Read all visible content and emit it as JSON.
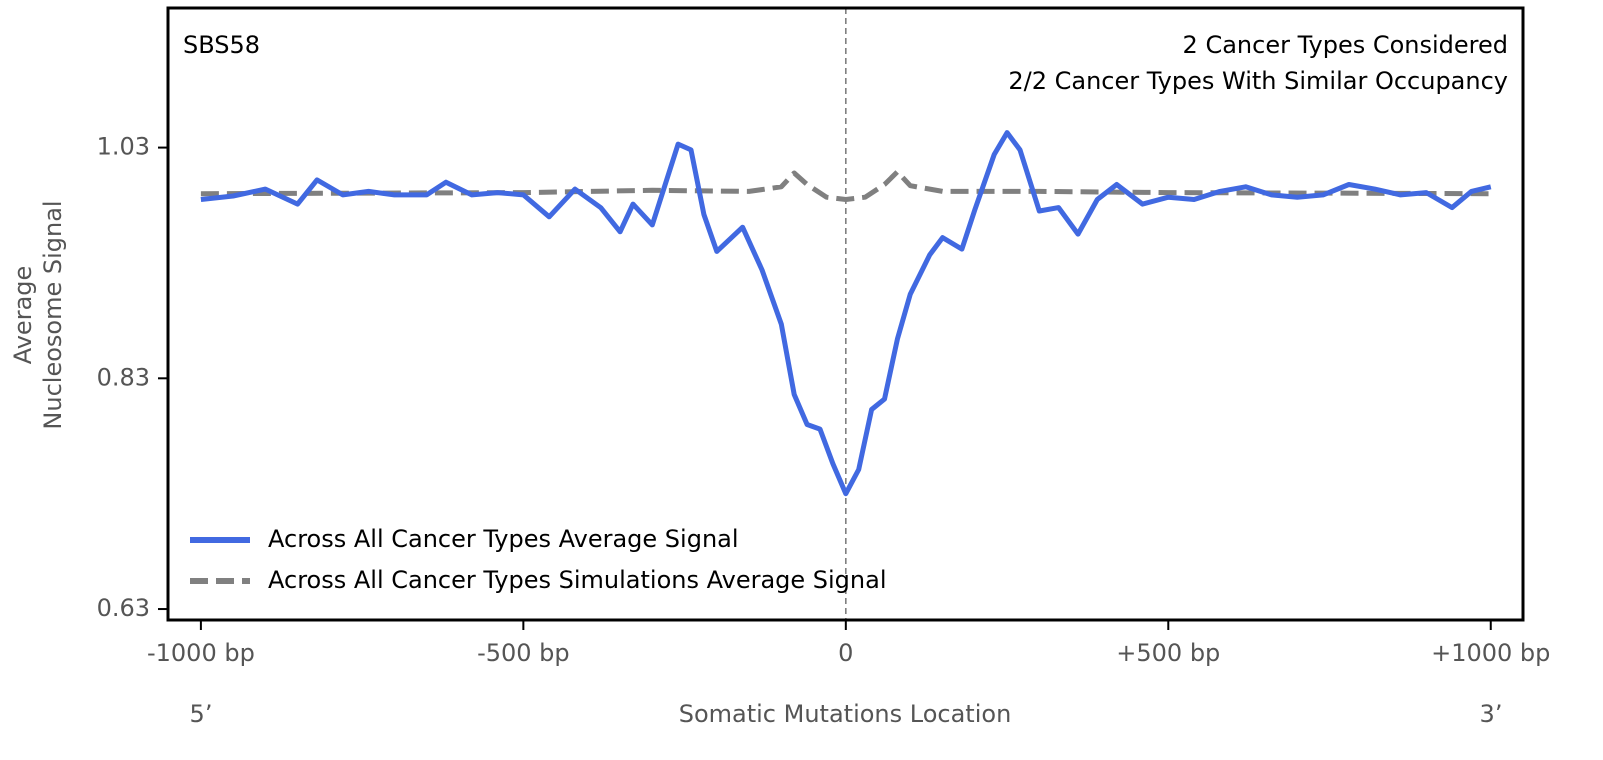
{
  "chart_data": {
    "type": "line",
    "annotations": [
      "SBS58",
      "2 Cancer Types Considered",
      "2/2 Cancer Types With Similar Occupancy"
    ],
    "xlabel": "Somatic Mutations Location",
    "xlabel_ends": [
      "5’",
      "3’"
    ],
    "ylabel": [
      "Average",
      "Nucleosome Signal"
    ],
    "xlim": [
      -1051,
      1050
    ],
    "ylim": [
      0.6205,
      1.151
    ],
    "xticks": [
      {
        "value": -1000,
        "label": "-1000 bp"
      },
      {
        "value": -500,
        "label": "-500 bp"
      },
      0,
      {
        "value": 500,
        "label": "+500 bp"
      },
      {
        "value": 1000,
        "label": "+1000 bp"
      }
    ],
    "yticks": [
      0.63,
      0.83,
      1.03
    ],
    "center_line": true,
    "legend": "lower left",
    "series": [
      {
        "name": "Across All Cancer Types Average Signal",
        "color": "#4169e1",
        "dash": false,
        "x": [
          -1000,
          -950,
          -900,
          -850,
          -820,
          -780,
          -740,
          -700,
          -650,
          -620,
          -580,
          -540,
          -500,
          -460,
          -420,
          -380,
          -350,
          -330,
          -300,
          -260,
          -240,
          -220,
          -200,
          -160,
          -130,
          -100,
          -80,
          -60,
          -40,
          -20,
          0,
          20,
          40,
          60,
          80,
          100,
          130,
          150,
          180,
          200,
          230,
          250,
          270,
          300,
          330,
          360,
          390,
          420,
          460,
          500,
          540,
          580,
          620,
          660,
          700,
          740,
          780,
          820,
          860,
          900,
          940,
          970,
          1000
        ],
        "values": [
          0.985,
          0.988,
          0.994,
          0.981,
          1.002,
          0.989,
          0.992,
          0.989,
          0.989,
          1.0,
          0.989,
          0.991,
          0.989,
          0.97,
          0.994,
          0.978,
          0.957,
          0.981,
          0.963,
          1.033,
          1.028,
          0.972,
          0.94,
          0.961,
          0.924,
          0.877,
          0.816,
          0.79,
          0.786,
          0.756,
          0.73,
          0.751,
          0.803,
          0.812,
          0.864,
          0.903,
          0.937,
          0.952,
          0.942,
          0.976,
          1.024,
          1.043,
          1.028,
          0.975,
          0.978,
          0.955,
          0.985,
          0.998,
          0.981,
          0.987,
          0.985,
          0.992,
          0.996,
          0.989,
          0.987,
          0.989,
          0.998,
          0.994,
          0.989,
          0.991,
          0.978,
          0.992,
          0.996
        ]
      },
      {
        "name": "Across All Cancer Types Simulations Average Signal",
        "color": "#808080",
        "dash": true,
        "x": [
          -1000,
          -500,
          -300,
          -150,
          -100,
          -80,
          -60,
          -30,
          0,
          30,
          60,
          80,
          100,
          150,
          300,
          500,
          1000
        ],
        "values": [
          0.99,
          0.991,
          0.993,
          0.992,
          0.996,
          1.008,
          0.998,
          0.987,
          0.985,
          0.987,
          0.998,
          1.009,
          0.997,
          0.992,
          0.992,
          0.991,
          0.99
        ]
      }
    ]
  }
}
